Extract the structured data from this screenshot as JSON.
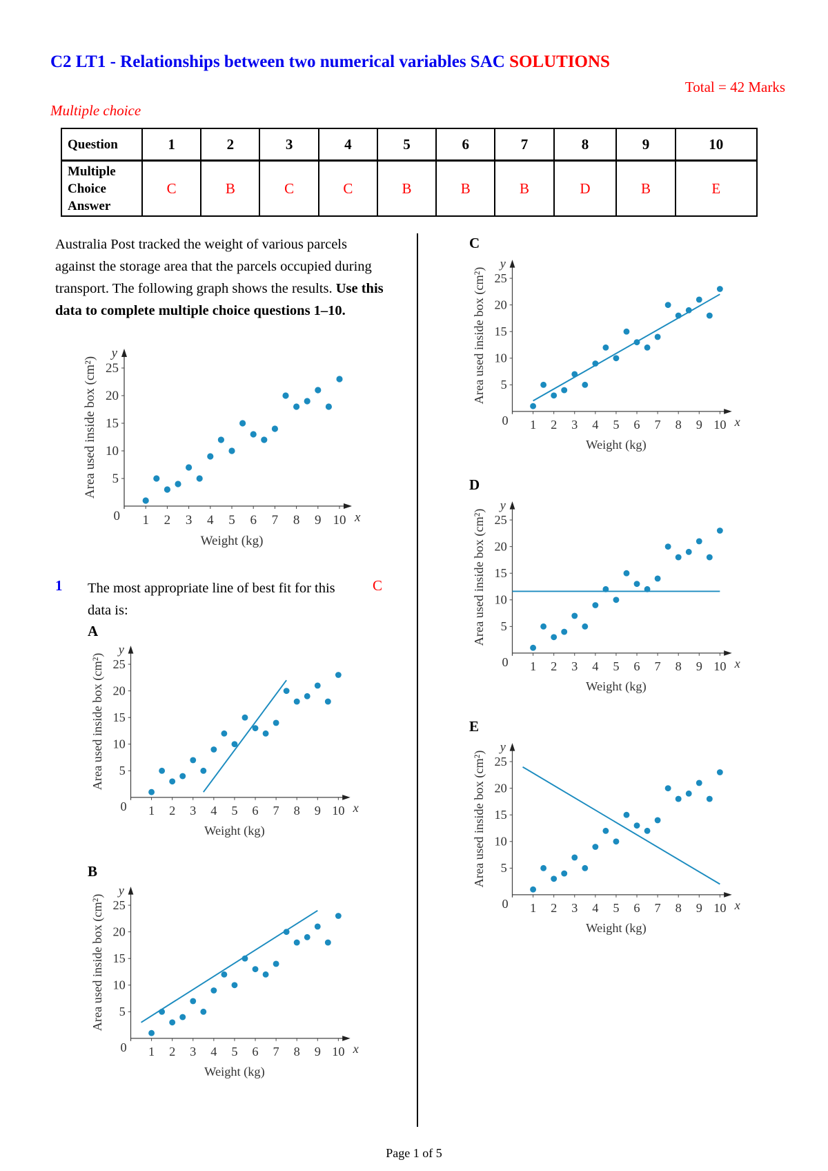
{
  "header": {
    "title": "C2 LT1 - Relationships between two numerical variables SAC",
    "title_suffix": "SOLUTIONS",
    "total": "Total = 42 Marks",
    "section": "Multiple choice"
  },
  "answer_table": {
    "row1_header": "Question",
    "row2_header": "Multiple Choice Answer",
    "questions": [
      "1",
      "2",
      "3",
      "4",
      "5",
      "6",
      "7",
      "8",
      "9",
      "10"
    ],
    "answers": [
      "C",
      "B",
      "C",
      "C",
      "B",
      "B",
      "B",
      "D",
      "B",
      "E"
    ]
  },
  "intro": {
    "text": "Australia Post tracked the weight of various parcels against the storage area that the parcels occupied during transport. The following graph shows the results. ",
    "bold": "Use this data to complete multiple choice questions 1–10."
  },
  "question1": {
    "number": "1",
    "text": "The most appropriate line of best fit for this data is:",
    "answer": "C"
  },
  "options": [
    "A",
    "B",
    "C",
    "D",
    "E"
  ],
  "colors": {
    "title": "#0000ee",
    "answer": "#ff0000",
    "points": "#1b8bbf"
  },
  "axis": {
    "xlabel": "Weight (kg)",
    "ylabel": "Area used inside box (cm²)",
    "x_symbol": "x",
    "y_symbol": "y",
    "origin": "0",
    "xticks": [
      "1",
      "2",
      "3",
      "4",
      "5",
      "6",
      "7",
      "8",
      "9",
      "10"
    ],
    "yticks": [
      "5",
      "10",
      "15",
      "20",
      "25"
    ]
  },
  "chart_data": [
    {
      "id": "main",
      "type": "scatter",
      "xlabel": "Weight (kg)",
      "ylabel": "Area used inside box (cm²)",
      "xlim": [
        0,
        10
      ],
      "ylim": [
        0,
        25
      ],
      "x": [
        1,
        1.5,
        2,
        2.5,
        3,
        3.5,
        4,
        4.5,
        5,
        5.5,
        6,
        6.5,
        7,
        7.5,
        8,
        8.5,
        9,
        9.5,
        10
      ],
      "y": [
        1,
        5,
        3,
        4,
        7,
        5,
        9,
        12,
        10,
        15,
        13,
        12,
        14,
        20,
        18,
        19,
        21,
        18,
        23
      ],
      "line": null
    },
    {
      "id": "A",
      "type": "scatter",
      "xlim": [
        0,
        10
      ],
      "ylim": [
        0,
        25
      ],
      "x": [
        1,
        1.5,
        2,
        2.5,
        3,
        3.5,
        4,
        4.5,
        5,
        5.5,
        6,
        6.5,
        7,
        7.5,
        8,
        8.5,
        9,
        9.5,
        10
      ],
      "y": [
        1,
        5,
        3,
        4,
        7,
        5,
        9,
        12,
        10,
        15,
        13,
        12,
        14,
        20,
        18,
        19,
        21,
        18,
        23
      ],
      "line": [
        [
          3.5,
          1
        ],
        [
          7.5,
          22
        ]
      ]
    },
    {
      "id": "B",
      "type": "scatter",
      "xlim": [
        0,
        10
      ],
      "ylim": [
        0,
        25
      ],
      "x": [
        1,
        1.5,
        2,
        2.5,
        3,
        3.5,
        4,
        4.5,
        5,
        5.5,
        6,
        6.5,
        7,
        7.5,
        8,
        8.5,
        9,
        9.5,
        10
      ],
      "y": [
        1,
        5,
        3,
        4,
        7,
        5,
        9,
        12,
        10,
        15,
        13,
        12,
        14,
        20,
        18,
        19,
        21,
        18,
        23
      ],
      "line": [
        [
          0.5,
          3
        ],
        [
          9,
          24
        ]
      ]
    },
    {
      "id": "C",
      "type": "scatter",
      "xlim": [
        0,
        10
      ],
      "ylim": [
        0,
        25
      ],
      "x": [
        1,
        1.5,
        2,
        2.5,
        3,
        3.5,
        4,
        4.5,
        5,
        5.5,
        6,
        6.5,
        7,
        7.5,
        8,
        8.5,
        9,
        9.5,
        10
      ],
      "y": [
        1,
        5,
        3,
        4,
        7,
        5,
        9,
        12,
        10,
        15,
        13,
        12,
        14,
        20,
        18,
        19,
        21,
        18,
        23
      ],
      "line": [
        [
          1,
          2
        ],
        [
          10,
          22
        ]
      ]
    },
    {
      "id": "D",
      "type": "scatter",
      "xlim": [
        0,
        10
      ],
      "ylim": [
        0,
        25
      ],
      "x": [
        1,
        1.5,
        2,
        2.5,
        3,
        3.5,
        4,
        4.5,
        5,
        5.5,
        6,
        6.5,
        7,
        7.5,
        8,
        8.5,
        9,
        9.5,
        10
      ],
      "y": [
        1,
        5,
        3,
        4,
        7,
        5,
        9,
        12,
        10,
        15,
        13,
        12,
        14,
        20,
        18,
        19,
        21,
        18,
        23
      ],
      "line": [
        [
          0,
          11.6
        ],
        [
          10,
          11.6
        ]
      ]
    },
    {
      "id": "E",
      "type": "scatter",
      "xlim": [
        0,
        10
      ],
      "ylim": [
        0,
        25
      ],
      "x": [
        1,
        1.5,
        2,
        2.5,
        3,
        3.5,
        4,
        4.5,
        5,
        5.5,
        6,
        6.5,
        7,
        7.5,
        8,
        8.5,
        9,
        9.5,
        10
      ],
      "y": [
        1,
        5,
        3,
        4,
        7,
        5,
        9,
        12,
        10,
        15,
        13,
        12,
        14,
        20,
        18,
        19,
        21,
        18,
        23
      ],
      "line": [
        [
          0.5,
          24
        ],
        [
          10,
          2
        ]
      ]
    }
  ],
  "footer": "Page 1 of 5"
}
